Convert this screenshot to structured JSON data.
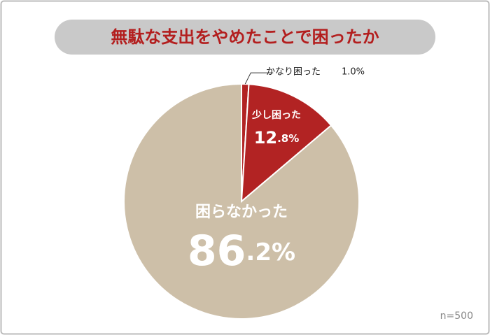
{
  "chart_data": {
    "type": "pie",
    "title": "無駄な支出をやめたことで困ったか",
    "note": "n=500",
    "categories": [
      "かなり困った",
      "少し困った",
      "困らなかった"
    ],
    "values": [
      1.0,
      12.8,
      86.2
    ],
    "value_labels": [
      "1.0%",
      "12.8%",
      "86.2%"
    ],
    "colors": [
      "#b22323",
      "#b22323",
      "#cdbfa8"
    ]
  }
}
